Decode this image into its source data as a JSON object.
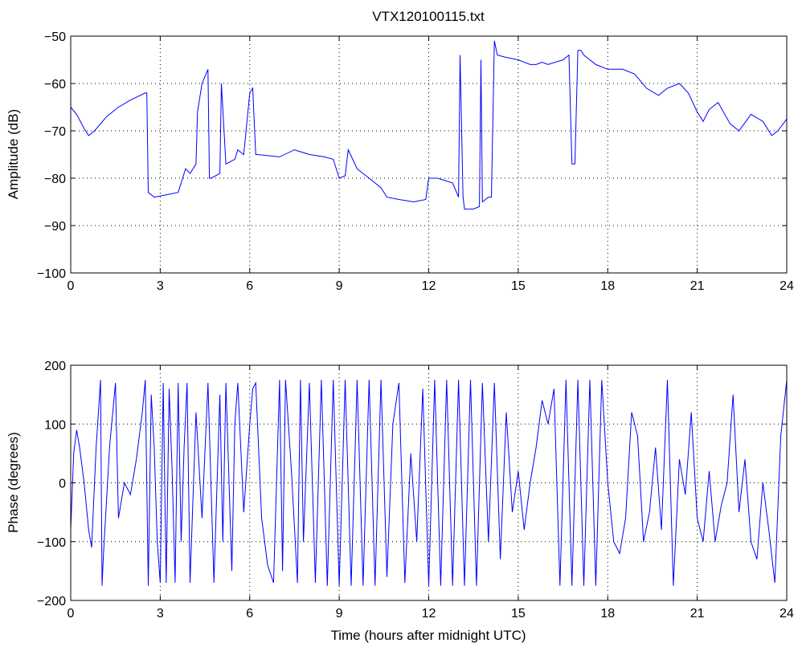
{
  "title": "VTX120100115.txt",
  "chart_data": [
    {
      "type": "line",
      "ylabel": "Amplitude (dB)",
      "xlabel": "",
      "xlim": [
        0,
        24
      ],
      "ylim": [
        -100,
        -50
      ],
      "xticks": [
        0,
        3,
        6,
        9,
        12,
        15,
        18,
        21,
        24
      ],
      "yticks": [
        -100,
        -90,
        -80,
        -70,
        -60,
        -50
      ],
      "xtick_labels": [
        "0",
        "3",
        "6",
        "9",
        "12",
        "15",
        "18",
        "21",
        "24"
      ],
      "ytick_labels": [
        "−100",
        "−90",
        "−80",
        "−70",
        "−60",
        "−50"
      ],
      "grid": true,
      "color": "#0000ff",
      "series": [
        {
          "x": [
            0,
            0.2,
            0.45,
            0.6,
            0.8,
            1.2,
            1.6,
            2.0,
            2.5,
            2.55,
            2.6,
            2.8,
            3.2,
            3.6,
            3.8,
            3.85,
            4.0,
            4.2,
            4.25,
            4.4,
            4.6,
            4.65,
            4.7,
            5.0,
            5.05,
            5.2,
            5.5,
            5.6,
            5.7,
            5.8,
            6.0,
            6.1,
            6.2,
            6.25,
            7.0,
            7.5,
            8.0,
            8.5,
            8.8,
            9.0,
            9.2,
            9.3,
            9.6,
            9.8,
            10.0,
            10.4,
            10.6,
            11.0,
            11.5,
            11.9,
            12.0,
            12.3,
            12.8,
            13.0,
            13.05,
            13.15,
            13.2,
            13.5,
            13.7,
            13.75,
            13.8,
            14.0,
            14.1,
            14.2,
            14.3,
            14.6,
            15.0,
            15.4,
            15.6,
            15.8,
            16.0,
            16.5,
            16.7,
            16.8,
            16.9,
            17.0,
            17.1,
            17.2,
            17.6,
            18.0,
            18.5,
            18.9,
            19.3,
            19.7,
            20.0,
            20.4,
            20.7,
            21.0,
            21.2,
            21.4,
            21.7,
            22.1,
            22.4,
            22.8,
            23.2,
            23.5,
            23.7,
            24.0
          ],
          "values": [
            -65,
            -66.5,
            -69.5,
            -71,
            -70,
            -67,
            -65,
            -63.5,
            -62,
            -62,
            -83,
            -84,
            -83.5,
            -83,
            -79,
            -78,
            -79,
            -77,
            -66,
            -60,
            -57,
            -80,
            -80,
            -79,
            -60,
            -77,
            -76,
            -74,
            -74.5,
            -75,
            -62,
            -61,
            -75,
            -75,
            -75.5,
            -74,
            -75,
            -75.5,
            -76,
            -80,
            -79.5,
            -74,
            -78,
            -79,
            -80,
            -82,
            -84,
            -84.5,
            -85,
            -84.5,
            -80,
            -80,
            -81,
            -84,
            -54,
            -84,
            -86.5,
            -86.5,
            -86,
            -55,
            -85,
            -84,
            -84,
            -51,
            -54,
            -54.5,
            -55,
            -56,
            -56,
            -55.5,
            -56,
            -55,
            -54,
            -77,
            -77,
            -53,
            -53,
            -54,
            -56,
            -57,
            -57,
            -58,
            -61,
            -62.5,
            -61,
            -60,
            -62,
            -66,
            -68,
            -65.5,
            -64,
            -68.5,
            -70,
            -66.5,
            -68,
            -71,
            -70,
            -67.5
          ]
        }
      ]
    },
    {
      "type": "line",
      "ylabel": "Phase (degrees)",
      "xlabel": "Time (hours after midnight UTC)",
      "xlim": [
        0,
        24
      ],
      "ylim": [
        -200,
        200
      ],
      "xticks": [
        0,
        3,
        6,
        9,
        12,
        15,
        18,
        21,
        24
      ],
      "yticks": [
        -200,
        -100,
        0,
        100,
        200
      ],
      "xtick_labels": [
        "0",
        "3",
        "6",
        "9",
        "12",
        "15",
        "18",
        "21",
        "24"
      ],
      "ytick_labels": [
        "−200",
        "−100",
        "0",
        "100",
        "200"
      ],
      "grid": true,
      "color": "#0000ff",
      "series": [
        {
          "x": [
            0,
            0.1,
            0.2,
            0.3,
            0.45,
            0.6,
            0.7,
            0.85,
            1.0,
            1.05,
            1.1,
            1.3,
            1.5,
            1.6,
            1.8,
            2.0,
            2.2,
            2.4,
            2.5,
            2.6,
            2.7,
            2.8,
            2.9,
            3.0,
            3.1,
            3.2,
            3.3,
            3.4,
            3.5,
            3.6,
            3.7,
            3.8,
            3.9,
            4.0,
            4.2,
            4.4,
            4.6,
            4.8,
            5.0,
            5.1,
            5.2,
            5.4,
            5.5,
            5.6,
            5.8,
            6.0,
            6.1,
            6.2,
            6.4,
            6.6,
            6.8,
            7.0,
            7.1,
            7.2,
            7.4,
            7.6,
            7.7,
            7.8,
            8.0,
            8.2,
            8.4,
            8.6,
            8.8,
            9.0,
            9.2,
            9.4,
            9.6,
            9.8,
            10.0,
            10.2,
            10.4,
            10.6,
            10.8,
            11.0,
            11.2,
            11.4,
            11.6,
            11.8,
            12.0,
            12.2,
            12.4,
            12.6,
            12.8,
            13.0,
            13.2,
            13.4,
            13.6,
            13.8,
            14.0,
            14.2,
            14.4,
            14.6,
            14.8,
            15.0,
            15.2,
            15.4,
            15.6,
            15.8,
            16.0,
            16.2,
            16.4,
            16.6,
            16.8,
            17.0,
            17.2,
            17.4,
            17.6,
            17.8,
            18.0,
            18.2,
            18.4,
            18.6,
            18.8,
            19.0,
            19.2,
            19.4,
            19.6,
            19.8,
            20.0,
            20.2,
            20.4,
            20.6,
            20.8,
            21.0,
            21.2,
            21.4,
            21.6,
            21.8,
            22.0,
            22.2,
            22.4,
            22.6,
            22.8,
            23.0,
            23.2,
            23.4,
            23.6,
            23.8,
            24.0
          ],
          "values": [
            -80,
            50,
            90,
            60,
            0,
            -80,
            -110,
            60,
            175,
            -175,
            -120,
            60,
            170,
            -60,
            0,
            -20,
            40,
            120,
            175,
            -175,
            150,
            60,
            -100,
            -170,
            170,
            -170,
            160,
            20,
            -170,
            170,
            -100,
            60,
            170,
            -170,
            120,
            -60,
            170,
            -170,
            150,
            -100,
            170,
            -150,
            100,
            170,
            -50,
            100,
            160,
            170,
            -60,
            -140,
            -170,
            175,
            -150,
            175,
            20,
            -170,
            175,
            -100,
            170,
            -170,
            175,
            -175,
            175,
            -175,
            175,
            -175,
            175,
            -175,
            175,
            -175,
            175,
            -160,
            100,
            170,
            -170,
            50,
            -100,
            160,
            -175,
            175,
            -175,
            175,
            -175,
            175,
            -175,
            175,
            -175,
            170,
            -100,
            170,
            -130,
            120,
            -50,
            20,
            -80,
            0,
            60,
            140,
            100,
            160,
            -175,
            175,
            -175,
            175,
            -175,
            175,
            -175,
            175,
            0,
            -100,
            -120,
            -60,
            120,
            80,
            -100,
            -50,
            60,
            -80,
            175,
            -175,
            40,
            -20,
            120,
            -60,
            -100,
            20,
            -100,
            -40,
            0,
            150,
            -50,
            40,
            -100,
            -130,
            0,
            -80,
            -170,
            80,
            175
          ]
        }
      ]
    }
  ]
}
